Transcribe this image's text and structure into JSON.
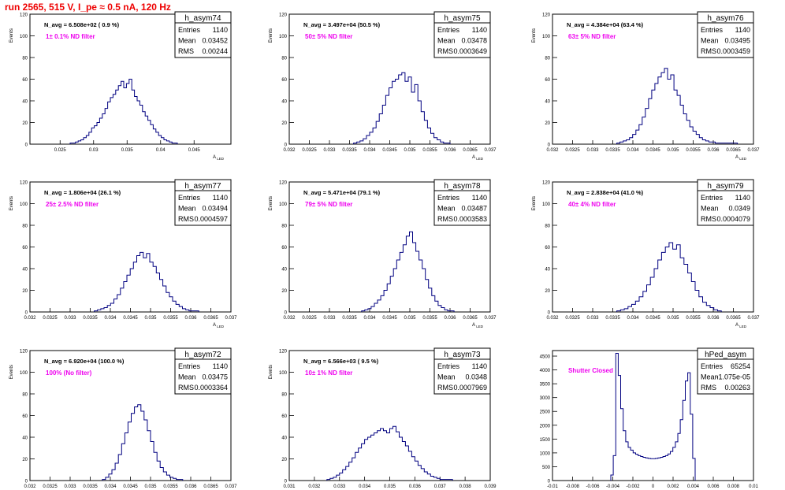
{
  "run_title": "run 2565,   515 V, I_pe ≈ 0.5 nA, 120 Hz",
  "colors": {
    "hist": "#000080",
    "label": "#ee00ee",
    "title": "#ee0000",
    "axis": "#000000"
  },
  "stats_labels": [
    "Entries",
    "Mean",
    "RMS"
  ],
  "chart_data": [
    {
      "type": "histogram",
      "name": "h_asym74",
      "navg": "N_avg = 6.508e+02 ( 0.9 %)",
      "filter": "1± 0.1% ND filter",
      "entries": "1140",
      "mean": "0.03452",
      "rms": "0.00244",
      "ylabel": "Events",
      "xlabel": "A_LED",
      "xlim": [
        0.0205,
        0.0505
      ],
      "ylim": [
        0,
        120
      ],
      "yticks": [
        0,
        20,
        40,
        60,
        80,
        100,
        120
      ],
      "xticks": [
        0.025,
        0.03,
        0.035,
        0.04,
        0.045
      ],
      "xtick_labels": [
        "0.025",
        "0.03",
        "0.035",
        "0.04",
        "0.045"
      ],
      "bins": {
        "lo": 0.0265,
        "hi": 0.0425,
        "values": [
          1,
          1,
          2,
          3,
          4,
          6,
          8,
          11,
          15,
          17,
          20,
          24,
          28,
          33,
          39,
          43,
          46,
          50,
          54,
          58,
          52,
          56,
          60,
          50,
          44,
          40,
          36,
          30,
          26,
          22,
          18,
          14,
          11,
          8,
          6,
          4,
          3,
          2,
          1,
          1
        ]
      }
    },
    {
      "type": "histogram",
      "name": "h_asym75",
      "navg": "N_avg = 3.497e+04 (50.5 %)",
      "filter": "50± 5% ND filter",
      "entries": "1140",
      "mean": "0.03478",
      "rms": "0.0003649",
      "ylabel": "Events",
      "xlabel": "A_LED",
      "xlim": [
        0.032,
        0.037
      ],
      "ylim": [
        0,
        120
      ],
      "yticks": [
        0,
        20,
        40,
        60,
        80,
        100,
        120
      ],
      "xticks": [
        0.032,
        0.0325,
        0.033,
        0.0335,
        0.034,
        0.0345,
        0.035,
        0.0355,
        0.036,
        0.0365,
        0.037
      ],
      "xtick_labels": [
        "0.032",
        "0.0325",
        "0.033",
        "0.0335",
        "0.034",
        "0.0345",
        "0.035",
        "0.0355",
        "0.036",
        "0.0365",
        "0.037"
      ],
      "bins": {
        "lo": 0.0336,
        "hi": 0.036,
        "values": [
          1,
          2,
          3,
          5,
          8,
          11,
          15,
          21,
          28,
          36,
          45,
          52,
          58,
          60,
          64,
          66,
          58,
          62,
          48,
          55,
          40,
          30,
          22,
          15,
          10,
          6,
          4,
          2,
          1,
          1
        ]
      }
    },
    {
      "type": "histogram",
      "name": "h_asym76",
      "navg": "N_avg = 4.384e+04 (63.4 %)",
      "filter": "63± 5% ND filter",
      "entries": "1140",
      "mean": "0.03495",
      "rms": "0.0003459",
      "ylabel": "Events",
      "xlabel": "A_LED",
      "xlim": [
        0.032,
        0.037
      ],
      "ylim": [
        0,
        120
      ],
      "yticks": [
        0,
        20,
        40,
        60,
        80,
        100,
        120
      ],
      "xticks": [
        0.032,
        0.0325,
        0.033,
        0.0335,
        0.034,
        0.0345,
        0.035,
        0.0355,
        0.036,
        0.0365,
        0.037
      ],
      "xtick_labels": [
        "0.032",
        "0.0325",
        "0.033",
        "0.0335",
        "0.034",
        "0.0345",
        "0.035",
        "0.0355",
        "0.036",
        "0.0365",
        "0.037"
      ],
      "bins": {
        "lo": 0.0336,
        "hi": 0.0366,
        "values": [
          1,
          2,
          3,
          4,
          6,
          9,
          13,
          18,
          25,
          33,
          42,
          50,
          56,
          62,
          66,
          70,
          60,
          64,
          50,
          45,
          36,
          28,
          22,
          16,
          12,
          9,
          6,
          4,
          3,
          2,
          2,
          1,
          1,
          1,
          1,
          1,
          1,
          1
        ]
      }
    },
    {
      "type": "histogram",
      "name": "h_asym77",
      "navg": "N_avg = 1.806e+04 (26.1 %)",
      "filter": "25± 2.5% ND filter",
      "entries": "1140",
      "mean": "0.03494",
      "rms": "0.0004597",
      "ylabel": "Events",
      "xlabel": "A_LED",
      "xlim": [
        0.032,
        0.037
      ],
      "ylim": [
        0,
        120
      ],
      "yticks": [
        0,
        20,
        40,
        60,
        80,
        100,
        120
      ],
      "xticks": [
        0.032,
        0.0325,
        0.033,
        0.0335,
        0.034,
        0.0345,
        0.035,
        0.0355,
        0.036,
        0.0365,
        0.037
      ],
      "xtick_labels": [
        "0.032",
        "0.0325",
        "0.033",
        "0.0335",
        "0.034",
        "0.0345",
        "0.035",
        "0.0355",
        "0.036",
        "0.0365",
        "0.037"
      ],
      "bins": {
        "lo": 0.0336,
        "hi": 0.0362,
        "values": [
          1,
          2,
          3,
          4,
          6,
          8,
          12,
          16,
          22,
          28,
          34,
          40,
          46,
          52,
          55,
          50,
          54,
          46,
          42,
          36,
          30,
          24,
          18,
          14,
          10,
          7,
          5,
          3,
          2,
          1,
          1,
          1
        ]
      }
    },
    {
      "type": "histogram",
      "name": "h_asym78",
      "navg": "N_avg = 5.471e+04 (79.1 %)",
      "filter": "79± 5% ND filter",
      "entries": "1140",
      "mean": "0.03487",
      "rms": "0.0003583",
      "ylabel": "Events",
      "xlabel": "A_LED",
      "xlim": [
        0.032,
        0.037
      ],
      "ylim": [
        0,
        120
      ],
      "yticks": [
        0,
        20,
        40,
        60,
        80,
        100,
        120
      ],
      "xticks": [
        0.032,
        0.0325,
        0.033,
        0.0335,
        0.034,
        0.0345,
        0.035,
        0.0355,
        0.036,
        0.0365,
        0.037
      ],
      "xtick_labels": [
        "0.032",
        "0.0325",
        "0.033",
        "0.0335",
        "0.034",
        "0.0345",
        "0.035",
        "0.0355",
        "0.036",
        "0.0365",
        "0.037"
      ],
      "bins": {
        "lo": 0.0338,
        "hi": 0.0361,
        "values": [
          1,
          2,
          3,
          5,
          8,
          11,
          15,
          20,
          26,
          33,
          40,
          48,
          55,
          62,
          70,
          74,
          64,
          56,
          48,
          40,
          30,
          22,
          15,
          10,
          6,
          4,
          2,
          1,
          1
        ]
      }
    },
    {
      "type": "histogram",
      "name": "h_asym79",
      "navg": "N_avg = 2.838e+04 (41.0 %)",
      "filter": "40± 4% ND filter",
      "entries": "1140",
      "mean": "0.0349",
      "rms": "0.0004079",
      "ylabel": "Events",
      "xlabel": "A_LED",
      "xlim": [
        0.032,
        0.037
      ],
      "ylim": [
        0,
        120
      ],
      "yticks": [
        0,
        20,
        40,
        60,
        80,
        100,
        120
      ],
      "xticks": [
        0.032,
        0.0325,
        0.033,
        0.0335,
        0.034,
        0.0345,
        0.035,
        0.0355,
        0.036,
        0.0365,
        0.037
      ],
      "xtick_labels": [
        "0.032",
        "0.0325",
        "0.033",
        "0.0335",
        "0.034",
        "0.0345",
        "0.035",
        "0.0355",
        "0.036",
        "0.0365",
        "0.037"
      ],
      "bins": {
        "lo": 0.0336,
        "hi": 0.0362,
        "values": [
          1,
          2,
          3,
          5,
          7,
          10,
          14,
          19,
          25,
          32,
          40,
          48,
          55,
          60,
          64,
          58,
          62,
          50,
          44,
          36,
          28,
          20,
          14,
          9,
          6,
          4,
          2,
          1
        ]
      }
    },
    {
      "type": "histogram",
      "name": "h_asym72",
      "navg": "N_avg = 6.920e+04 (100.0 %)",
      "filter": "100% (No filter)",
      "entries": "1140",
      "mean": "0.03475",
      "rms": "0.0003364",
      "ylabel": "Events",
      "xlabel": "A_LED",
      "xlim": [
        0.032,
        0.037
      ],
      "ylim": [
        0,
        120
      ],
      "yticks": [
        0,
        20,
        40,
        60,
        80,
        100,
        120
      ],
      "xticks": [
        0.032,
        0.0325,
        0.033,
        0.0335,
        0.034,
        0.0345,
        0.035,
        0.0355,
        0.036,
        0.0365,
        0.037
      ],
      "xtick_labels": [
        "0.032",
        "0.0325",
        "0.033",
        "0.0335",
        "0.034",
        "0.0345",
        "0.035",
        "0.0355",
        "0.036",
        "0.0365",
        "0.037"
      ],
      "bins": {
        "lo": 0.0338,
        "hi": 0.0358,
        "values": [
          1,
          3,
          6,
          10,
          16,
          24,
          34,
          44,
          54,
          62,
          68,
          70,
          64,
          56,
          46,
          36,
          26,
          18,
          12,
          8,
          5,
          3,
          2,
          1,
          1
        ]
      }
    },
    {
      "type": "histogram",
      "name": "h_asym73",
      "navg": "N_avg = 6.566e+03 ( 9.5 %)",
      "filter": "10± 1% ND filter",
      "entries": "1140",
      "mean": "0.0348",
      "rms": "0.0007969",
      "ylabel": "Events",
      "xlabel": "A_LED",
      "xlim": [
        0.031,
        0.039
      ],
      "ylim": [
        0,
        120
      ],
      "yticks": [
        0,
        20,
        40,
        60,
        80,
        100,
        120
      ],
      "xticks": [
        0.031,
        0.032,
        0.033,
        0.034,
        0.035,
        0.036,
        0.037,
        0.038,
        0.039
      ],
      "xtick_labels": [
        "0.031",
        "0.032",
        "0.033",
        "0.034",
        "0.035",
        "0.036",
        "0.037",
        "0.038",
        "0.039"
      ],
      "bins": {
        "lo": 0.0325,
        "hi": 0.0375,
        "values": [
          1,
          2,
          3,
          5,
          7,
          10,
          13,
          17,
          21,
          26,
          30,
          34,
          38,
          40,
          42,
          44,
          46,
          48,
          46,
          44,
          48,
          50,
          45,
          40,
          36,
          32,
          27,
          22,
          18,
          14,
          11,
          8,
          6,
          4,
          3,
          2,
          1,
          1,
          1,
          1
        ]
      }
    },
    {
      "type": "histogram",
      "name": "hPed_asym",
      "navg": "",
      "filter": "Shutter Closed",
      "entries": "65254",
      "mean": "-1.075e-05",
      "rms": "0.00263",
      "ylabel": "",
      "xlabel": "",
      "xlim": [
        -0.01,
        0.01
      ],
      "ylim": [
        0,
        4700
      ],
      "yticks": [
        0,
        500,
        1000,
        1500,
        2000,
        2500,
        3000,
        3500,
        4000,
        4500
      ],
      "xticks": [
        -0.01,
        -0.008,
        -0.006,
        -0.004,
        -0.002,
        0,
        0.002,
        0.004,
        0.006,
        0.008,
        0.01
      ],
      "xtick_labels": [
        "-0.01",
        "-0.008",
        "-0.006",
        "-0.004",
        "-0.002",
        "0",
        "0.002",
        "0.004",
        "0.006",
        "0.008",
        "0.01"
      ],
      "bins": {
        "lo": -0.0042,
        "hi": 0.0042,
        "values": [
          200,
          900,
          4600,
          3800,
          2600,
          1800,
          1400,
          1200,
          1100,
          1000,
          950,
          900,
          870,
          840,
          820,
          800,
          790,
          790,
          800,
          820,
          840,
          870,
          900,
          960,
          1050,
          1200,
          1400,
          1700,
          2200,
          2900,
          3600,
          3900,
          2400,
          800
        ]
      }
    }
  ]
}
